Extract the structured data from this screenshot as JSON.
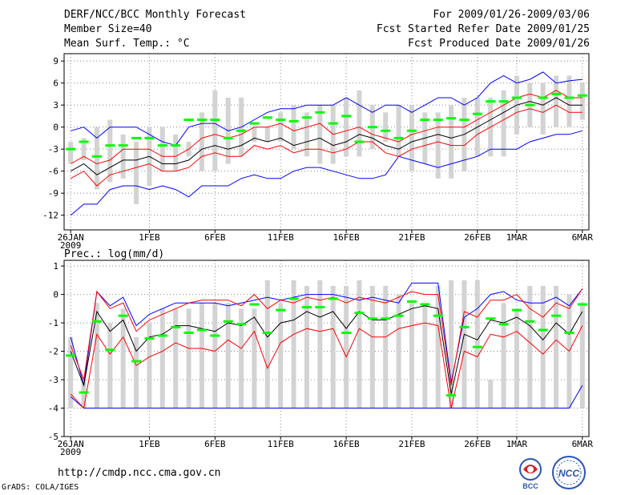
{
  "header": {
    "title": "DERF/NCC/BCC Monthly Forecast",
    "member_size": "Member Size=40",
    "variable": "Mean Surf. Temp.: °C",
    "period": "For 2009/01/26-2009/03/06",
    "start_date": "Fcst Started Refer Date 2009/01/25",
    "produced_date": "Fcst Produced Date 2009/01/26"
  },
  "footer": {
    "url": "http://cmdp.ncc.cma.gov.cn",
    "credit": "GrADS: COLA/IGES",
    "logo1_label": "BCC",
    "logo2_label": "NCC"
  },
  "colors": {
    "box": "#d3d3d3",
    "median": "#00ff00",
    "mean": "#000000",
    "spread": "#ff0000",
    "extreme": "#0000ff",
    "grid": "#888888"
  },
  "chart_data": [
    {
      "type": "box-line",
      "title": "Mean Surf. Temp.: °C",
      "x_tick_labels": [
        "26JAN",
        "1FEB",
        "6FEB",
        "11FEB",
        "16FEB",
        "21FEB",
        "26FEB",
        "1MAR",
        "6MAR"
      ],
      "x_tick_days": [
        0,
        6,
        11,
        16,
        21,
        26,
        31,
        34,
        39
      ],
      "x_year_label": "2009",
      "ylim": [
        -14,
        10
      ],
      "y_ticks": [
        9,
        6,
        3,
        0,
        -3,
        -6,
        -9,
        -12
      ],
      "box_low": [
        -5,
        -4.5,
        -8.5,
        -7.5,
        -7,
        -10.5,
        -8,
        -6,
        -6,
        -4,
        -6,
        -6,
        -5,
        -4,
        -2,
        -2,
        -2,
        -3,
        -4,
        -5,
        -5,
        -4,
        -4,
        -3,
        -2,
        -4,
        -6,
        -5,
        -7,
        -7,
        -6,
        -4,
        -4,
        -4,
        -1,
        0,
        -1,
        0,
        0,
        1
      ],
      "box_high": [
        -2,
        -1.5,
        0,
        1,
        -1,
        -2,
        0,
        0,
        -1,
        -2,
        2,
        5,
        4,
        4,
        0,
        0,
        2,
        3,
        2,
        3,
        3,
        4,
        5,
        3,
        2,
        3,
        3,
        2,
        2,
        3,
        4,
        4,
        4,
        5,
        7,
        6,
        6,
        7,
        7,
        6
      ],
      "median": [
        -3,
        -2,
        -4,
        -2.5,
        -2.5,
        -1.5,
        -1.5,
        -2.5,
        -2.5,
        1,
        1,
        1,
        -1.5,
        -0.5,
        0.5,
        1.3,
        1,
        0.8,
        1.3,
        2,
        0.5,
        1.5,
        -2,
        0,
        -0.5,
        -1.5,
        -0.5,
        1,
        1,
        1.2,
        1,
        1.8,
        3.5,
        3.5,
        4,
        3,
        4,
        4.5,
        4,
        4.3
      ],
      "mean": [
        -6,
        -5,
        -6.5,
        -5.5,
        -4.5,
        -4.5,
        -4,
        -5,
        -5,
        -4.5,
        -3,
        -2.5,
        -3,
        -2.5,
        -1.5,
        -2,
        -1.5,
        -2.5,
        -2,
        -1.5,
        -2.5,
        -2,
        -1,
        -1.5,
        -2.5,
        -3,
        -2,
        -1.5,
        -1,
        -1.5,
        -1,
        0,
        1,
        2,
        3,
        3.5,
        3,
        4,
        3,
        3
      ],
      "upper": [
        -5,
        -4,
        -5,
        -4.5,
        -3,
        -3,
        -3,
        -4,
        -4,
        -3,
        -1.5,
        -1,
        -1.5,
        -1,
        0,
        0,
        0.5,
        -0.5,
        0,
        0.5,
        -1,
        -0.5,
        0,
        -1,
        -1.5,
        -2,
        -1,
        -0.5,
        0,
        0,
        0,
        1,
        2,
        3,
        4,
        4.5,
        4,
        5,
        4,
        4
      ],
      "lower": [
        -7,
        -6,
        -8,
        -6.5,
        -6,
        -5.5,
        -5,
        -6,
        -6,
        -5.5,
        -4,
        -3.5,
        -4,
        -4,
        -2.5,
        -3,
        -2.5,
        -3.5,
        -3,
        -3,
        -3.5,
        -3,
        -2,
        -2,
        -3.5,
        -4,
        -3,
        -2.5,
        -2,
        -2.5,
        -2.5,
        -1,
        0,
        1,
        2,
        2.5,
        2,
        3,
        2,
        2
      ],
      "max": [
        -0.5,
        0,
        -1.5,
        0,
        0,
        0,
        -1,
        -2,
        -2.5,
        0,
        0.5,
        0.5,
        -0.5,
        0,
        1,
        2,
        2.5,
        2.5,
        3,
        3,
        3,
        4,
        3,
        2,
        3,
        3,
        2,
        3,
        4,
        4,
        3,
        4,
        6,
        7,
        6,
        6.5,
        7.5,
        6,
        6.3,
        6.5
      ],
      "min": [
        -12,
        -10.5,
        -10.5,
        -8.5,
        -8,
        -8,
        -8.5,
        -8,
        -8.5,
        -9.5,
        -8,
        -8,
        -8,
        -7,
        -6.5,
        -7,
        -7,
        -6,
        -5.5,
        -5.5,
        -6,
        -6.5,
        -7,
        -7,
        -6.5,
        -4,
        -4.5,
        -5,
        -5.5,
        -5,
        -4.5,
        -4,
        -3,
        -3,
        -3,
        -2,
        -1.5,
        -1,
        -1,
        -0.5
      ]
    },
    {
      "type": "box-line",
      "title": "Prec.: log(mm/d)",
      "x_tick_labels": [
        "26JAN",
        "1FEB",
        "6FEB",
        "11FEB",
        "16FEB",
        "21FEB",
        "26FEB",
        "1MAR",
        "6MAR"
      ],
      "x_tick_days": [
        0,
        6,
        11,
        16,
        21,
        26,
        31,
        34,
        39
      ],
      "x_year_label": "2009",
      "ylim": [
        -5,
        1.2
      ],
      "y_ticks": [
        1,
        0,
        -1,
        -2,
        -3,
        -4,
        -5
      ],
      "box_low": [
        -4,
        -4,
        -4,
        -4,
        -4,
        -4,
        -4,
        -4,
        -4,
        -4,
        -4,
        -4,
        -4,
        -4,
        -4,
        -4,
        -4,
        -4,
        -4,
        -4,
        -4,
        -4,
        -4,
        -4,
        -4,
        -4,
        -4,
        -4,
        -4,
        -4,
        -4,
        -4,
        -4,
        -4,
        -4,
        -4,
        -4,
        -4,
        -4,
        -4
      ],
      "box_high": [
        -1.5,
        -3,
        -0.3,
        -1,
        -0.5,
        -1.5,
        -1,
        -0.5,
        -0.5,
        -0.5,
        -0.3,
        -0.3,
        -0.3,
        -0.5,
        -0.5,
        0.5,
        -0.3,
        0.5,
        0.3,
        0.5,
        0.3,
        0.3,
        0.5,
        0.3,
        0.3,
        0,
        -0.3,
        -0.3,
        0.3,
        0.5,
        0.5,
        0.5,
        -3,
        -0.3,
        -0.5,
        0.3,
        0.3,
        0.3,
        0,
        -0.3
      ],
      "median": [
        -2.15,
        -3.45,
        -0.95,
        -1.95,
        -0.75,
        -2.35,
        -1.55,
        -1.45,
        -1.15,
        -1.35,
        -1.25,
        -1.45,
        -0.95,
        -1.05,
        -0.35,
        -1.35,
        -0.55,
        -0.15,
        -0.45,
        -0.45,
        -0.15,
        -1.35,
        -0.65,
        -0.85,
        -0.85,
        -0.75,
        -0.25,
        -0.35,
        -0.75,
        -3.55,
        -1.15,
        -1.85,
        -0.85,
        -1.05,
        -0.55,
        -0.95,
        -1.25,
        -0.75,
        -1.35,
        -0.35
      ],
      "mean": [
        -2,
        -3.2,
        -0.6,
        -1.3,
        -0.9,
        -2,
        -1.5,
        -1.4,
        -1.1,
        -1.1,
        -1.2,
        -1.3,
        -1,
        -1.1,
        -0.8,
        -1.5,
        -1,
        -0.9,
        -0.6,
        -0.8,
        -0.6,
        -1.2,
        -0.6,
        -0.9,
        -0.9,
        -0.7,
        -0.5,
        -0.4,
        -0.5,
        -3.5,
        -1.4,
        -1.6,
        -0.9,
        -1,
        -0.8,
        -1.1,
        -1.6,
        -1,
        -1.4,
        -0.6
      ],
      "upper": [
        -1.8,
        -3,
        0.1,
        -0.5,
        -0.3,
        -1.3,
        -0.9,
        -0.7,
        -0.5,
        -0.3,
        -0.2,
        -0.2,
        -0.2,
        -0.4,
        0,
        -0.5,
        -0.2,
        -0.3,
        -0.1,
        -0.2,
        -0.1,
        -0.3,
        -0.1,
        -0.2,
        -0.3,
        -0.1,
        0.1,
        0,
        0,
        -3.2,
        -0.6,
        -0.8,
        -0.2,
        -0.2,
        0,
        -0.5,
        -0.8,
        -0.3,
        -0.5,
        0.2
      ],
      "lower": [
        -3.5,
        -4,
        -1.4,
        -2.1,
        -1.5,
        -2.5,
        -2.2,
        -2,
        -1.7,
        -1.9,
        -1.9,
        -2,
        -1.6,
        -1.9,
        -1.3,
        -2.6,
        -1.7,
        -1.4,
        -1.2,
        -1.3,
        -1.2,
        -2.2,
        -1.2,
        -1.5,
        -1.5,
        -1.2,
        -1.1,
        -1,
        -1.1,
        -4,
        -2,
        -2.2,
        -1.4,
        -1.5,
        -1.3,
        -1.7,
        -2.1,
        -1.6,
        -2,
        -1.1
      ],
      "max": [
        -1.5,
        -3.2,
        0.1,
        -0.4,
        -0.1,
        -1.1,
        -0.7,
        -0.5,
        -0.3,
        -0.3,
        -0.3,
        -0.3,
        -0.4,
        -0.3,
        -0.2,
        -0.1,
        -0.2,
        -0.1,
        0,
        0,
        0,
        -0.1,
        -0.2,
        -0.1,
        -0.2,
        -0.3,
        0.4,
        0.4,
        0.4,
        -3.1,
        -0.8,
        -0.5,
        0,
        0.1,
        -0.2,
        -0.3,
        -0.3,
        -0.1,
        -0.4,
        0.2
      ],
      "min": [
        -3.6,
        -4,
        -4,
        -4,
        -4,
        -4,
        -4,
        -4,
        -4,
        -4,
        -4,
        -4,
        -4,
        -4,
        -4,
        -4,
        -4,
        -4,
        -4,
        -4,
        -4,
        -4,
        -4,
        -4,
        -4,
        -4,
        -4,
        -4,
        -4,
        -4,
        -4,
        -4,
        -4,
        -4,
        -4,
        -4,
        -4,
        -4,
        -4,
        -3.2
      ]
    }
  ]
}
